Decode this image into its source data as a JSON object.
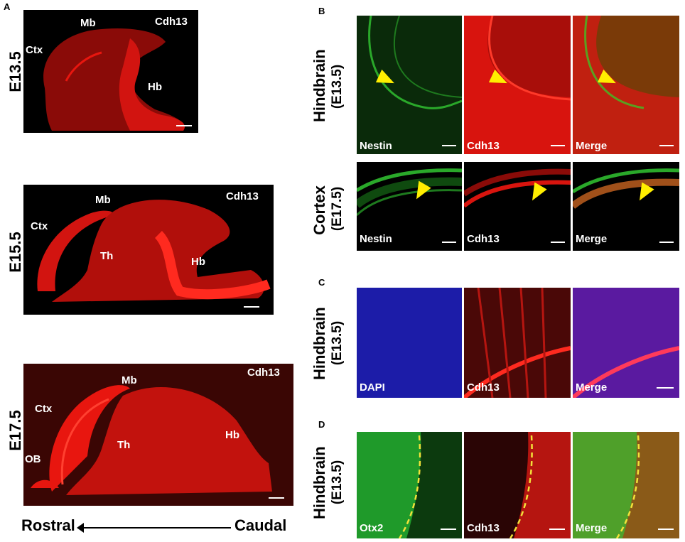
{
  "panel_letters": {
    "a": "A",
    "b": "B",
    "c": "C",
    "d": "D"
  },
  "panelA": {
    "rows": [
      {
        "stage": "E13.5",
        "stain": "Cdh13",
        "labels": [
          "Ctx",
          "Mb",
          "Hb"
        ]
      },
      {
        "stage": "E15.5",
        "stain": "Cdh13",
        "labels": [
          "Mb",
          "Ctx",
          "Th",
          "Hb"
        ]
      },
      {
        "stage": "E17.5",
        "stain": "Cdh13",
        "labels": [
          "Mb",
          "Ctx",
          "Th",
          "Hb",
          "OB"
        ]
      }
    ],
    "axis": {
      "rostral": "Rostral",
      "caudal": "Caudal"
    }
  },
  "panelB": {
    "rows": [
      {
        "region": "Hindbrain",
        "stage": "(E13.5)",
        "channels": [
          "Nestin",
          "Cdh13",
          "Merge"
        ]
      },
      {
        "region": "Cortex",
        "stage": "(E17.5)",
        "channels": [
          "Nestin",
          "Cdh13",
          "Merge"
        ]
      }
    ]
  },
  "panelC": {
    "region": "Hindbrain",
    "stage": "(E13.5)",
    "channels": [
      "DAPI",
      "Cdh13",
      "Merge"
    ]
  },
  "panelD": {
    "region": "Hindbrain",
    "stage": "(E13.5)",
    "channels": [
      "Otx2",
      "Cdh13",
      "Merge"
    ]
  },
  "colors": {
    "red": "#e8160f",
    "green": "#1f9a2a",
    "blue": "#2a2ad0",
    "arrowhead": "#ffee00",
    "dashed": "#f2e23a"
  }
}
